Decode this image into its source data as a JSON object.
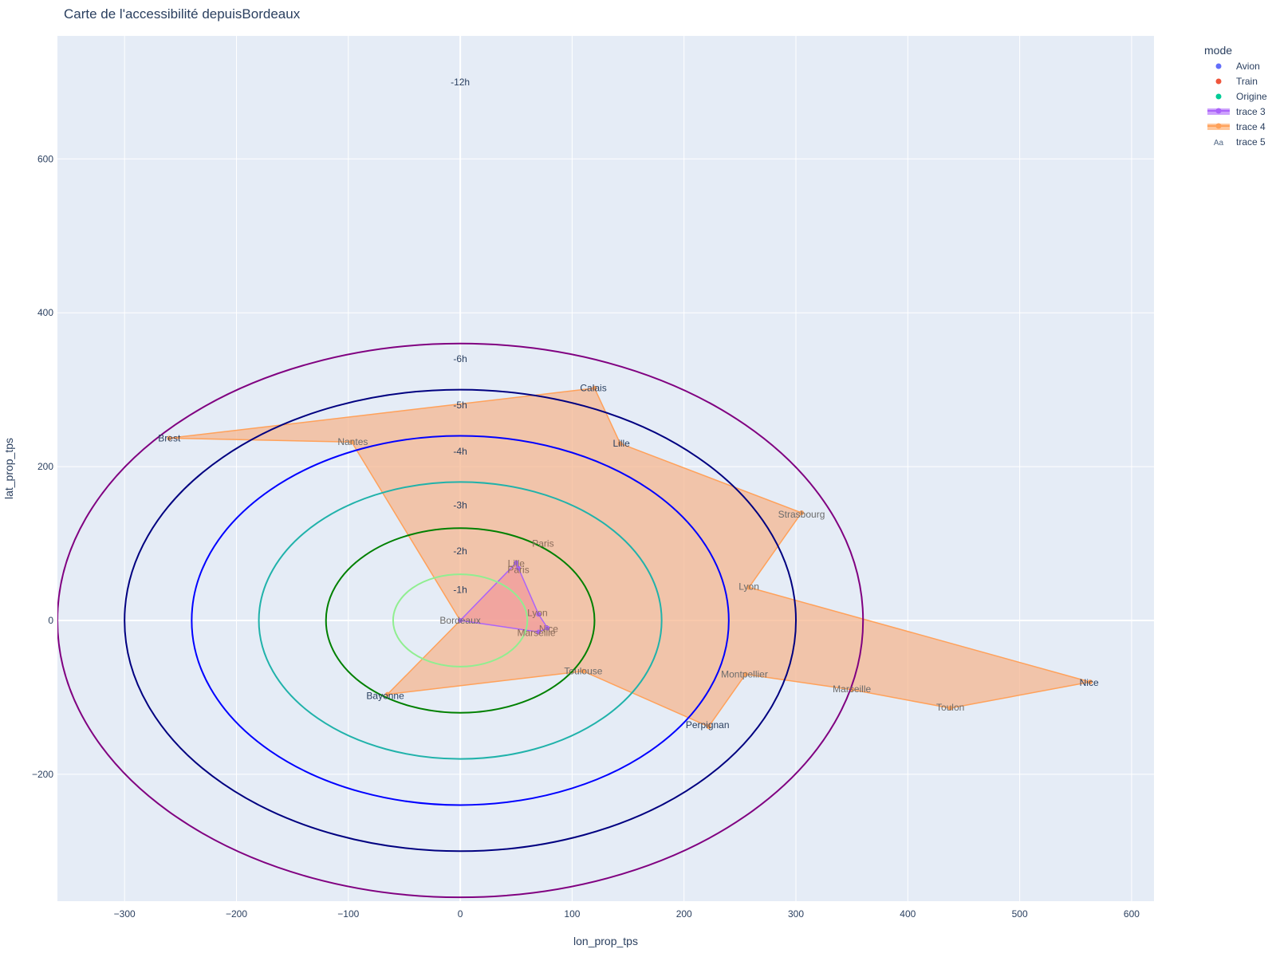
{
  "chart_data": {
    "type": "scatter",
    "title": "Carte de l'accessibilité depuisBordeaux",
    "xlabel": "lon_prop_tps",
    "ylabel": "lat_prop_tps",
    "xlim": [
      -360,
      620
    ],
    "ylim": [
      -365,
      760
    ],
    "xticks": [
      -300,
      -200,
      -100,
      0,
      100,
      200,
      300,
      400,
      500,
      600
    ],
    "yticks": [
      -200,
      0,
      200,
      400,
      600
    ],
    "xtick_labels": [
      "−300",
      "−200",
      "−100",
      "0",
      "100",
      "200",
      "300",
      "400",
      "500",
      "600"
    ],
    "ytick_labels": [
      "−200",
      "0",
      "200",
      "400",
      "600"
    ],
    "grid": true,
    "legend": {
      "title": "mode",
      "placement": "top-right",
      "entries": [
        {
          "name": "Avion",
          "color": "#636efa",
          "symbol": "dot"
        },
        {
          "name": "Train",
          "color": "#ef553b",
          "symbol": "dot"
        },
        {
          "name": "Origine",
          "color": "#00cc96",
          "symbol": "dot"
        },
        {
          "name": "trace 3",
          "color": "#ab63fa",
          "symbol": "fill"
        },
        {
          "name": "trace 4",
          "color": "#ffa15a",
          "symbol": "fill"
        },
        {
          "name": "trace 5",
          "color": "#506784",
          "symbol": "text"
        }
      ]
    },
    "circles": [
      {
        "label": "-1h",
        "radius": 60,
        "color": "#90ee90"
      },
      {
        "label": "-2h",
        "radius": 120,
        "color": "#008000"
      },
      {
        "label": "-3h",
        "radius": 180,
        "color": "#20b2aa"
      },
      {
        "label": "-4h",
        "radius": 240,
        "color": "#0000ff"
      },
      {
        "label": "-5h",
        "radius": 300,
        "color": "#000080"
      },
      {
        "label": "-6h",
        "radius": 360,
        "color": "#800080"
      }
    ],
    "radius_labels": [
      {
        "text": "-1h",
        "x": 0,
        "y": 40
      },
      {
        "text": "-2h",
        "x": 0,
        "y": 90
      },
      {
        "text": "-3h",
        "x": 0,
        "y": 150
      },
      {
        "text": "-4h",
        "x": 0,
        "y": 220
      },
      {
        "text": "-5h",
        "x": 0,
        "y": 280
      },
      {
        "text": "-6h",
        "x": 0,
        "y": 340
      },
      {
        "text": "-12h",
        "x": 0,
        "y": 700
      }
    ],
    "series": [
      {
        "name": "trace 3",
        "color": "#ab63fa",
        "fill": "rgba(240,140,150,0.55)",
        "points": [
          {
            "label": "Bordeaux",
            "x": 0,
            "y": 0
          },
          {
            "label": "Lille",
            "x": 50,
            "y": 75
          },
          {
            "label": "Paris",
            "x": 52,
            "y": 68
          },
          {
            "label": "Lyon",
            "x": 70,
            "y": 8
          },
          {
            "label": "Nice",
            "x": 78,
            "y": -10
          },
          {
            "label": "Marseille",
            "x": 70,
            "y": -15
          },
          {
            "label": "Bordeaux",
            "x": 0,
            "y": 0
          }
        ]
      },
      {
        "name": "trace 4",
        "color": "#ffa15a",
        "fill": "rgba(245,180,140,0.72)",
        "points": [
          {
            "label": "Bordeaux",
            "x": 0,
            "y": 0
          },
          {
            "label": "Nantes",
            "x": -97,
            "y": 232
          },
          {
            "label": "Brest",
            "x": -260,
            "y": 237
          },
          {
            "label": "Calais",
            "x": 120,
            "y": 302
          },
          {
            "label": "Lille",
            "x": 143,
            "y": 230
          },
          {
            "label": "Strasbourg",
            "x": 305,
            "y": 140
          },
          {
            "label": "Lyon",
            "x": 258,
            "y": 43
          },
          {
            "label": "Nice",
            "x": 563,
            "y": -80
          },
          {
            "label": "Toulon",
            "x": 438,
            "y": -114
          },
          {
            "label": "Marseille",
            "x": 350,
            "y": -90
          },
          {
            "label": "Montpellier",
            "x": 255,
            "y": -70
          },
          {
            "label": "Perpignan",
            "x": 222,
            "y": -138
          },
          {
            "label": "Toulouse",
            "x": 110,
            "y": -66
          },
          {
            "label": "Bayonne",
            "x": -65,
            "y": -96
          },
          {
            "label": "Bordeaux",
            "x": 0,
            "y": 0
          }
        ]
      }
    ],
    "text_labels": [
      {
        "text": "Bordeaux",
        "x": 0,
        "y": 0,
        "color": "#6b6b6b"
      },
      {
        "text": "Paris",
        "x": 74,
        "y": 100,
        "color": "#8a6b5a"
      },
      {
        "text": "Lille",
        "x": 50,
        "y": 74,
        "color": "#8a6b5a"
      },
      {
        "text": "Paris",
        "x": 52,
        "y": 66,
        "color": "#8a6b5a"
      },
      {
        "text": "Lyon",
        "x": 69,
        "y": 10,
        "color": "#8a6b5a"
      },
      {
        "text": "Nice",
        "x": 79,
        "y": -11,
        "color": "#8a6b5a"
      },
      {
        "text": "Marseille",
        "x": 68,
        "y": -16,
        "color": "#8a6b5a"
      },
      {
        "text": "Calais",
        "x": 119,
        "y": 302,
        "color": "#2a3f5f"
      },
      {
        "text": "Lille",
        "x": 144,
        "y": 230,
        "color": "#2a3f5f"
      },
      {
        "text": "Brest",
        "x": -260,
        "y": 237,
        "color": "#2a3f5f"
      },
      {
        "text": "Nantes",
        "x": -96,
        "y": 232,
        "color": "#6b6b6b"
      },
      {
        "text": "Strasbourg",
        "x": 305,
        "y": 138,
        "color": "#6b6b6b"
      },
      {
        "text": "Lyon",
        "x": 258,
        "y": 44,
        "color": "#6b6b6b"
      },
      {
        "text": "Toulouse",
        "x": 110,
        "y": -66,
        "color": "#6b6b6b"
      },
      {
        "text": "Montpellier",
        "x": 254,
        "y": -70,
        "color": "#6b6b6b"
      },
      {
        "text": "Marseille",
        "x": 350,
        "y": -89,
        "color": "#6b6b6b"
      },
      {
        "text": "Nice",
        "x": 562,
        "y": -81,
        "color": "#2a3f5f"
      },
      {
        "text": "Toulon",
        "x": 438,
        "y": -113,
        "color": "#6b6b6b"
      },
      {
        "text": "Perpignan",
        "x": 221,
        "y": -136,
        "color": "#2a3f5f"
      },
      {
        "text": "Bayonne",
        "x": -67,
        "y": -98,
        "color": "#2a3f5f"
      }
    ]
  }
}
